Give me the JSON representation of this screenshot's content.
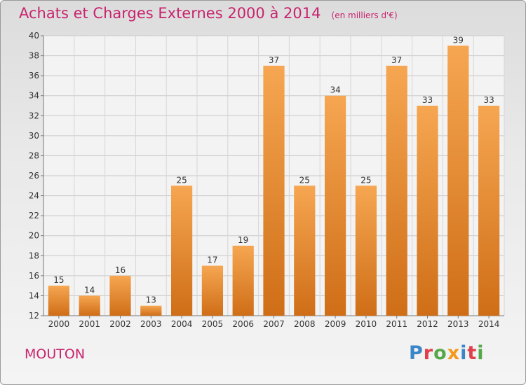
{
  "header": {
    "title": "Achats et Charges Externes 2000 à 2014",
    "unit": "(en milliers d'€)"
  },
  "footer": {
    "commune": "MOUTON",
    "logo_text": "Proxiti"
  },
  "colors": {
    "title": "#c8236e",
    "bar_light": "#f6a651",
    "bar_dark": "#cf6e17",
    "logo": [
      "#3a86c8",
      "#e0404a",
      "#55a84a",
      "#f39a1e",
      "#3a86c8",
      "#e0404a",
      "#55a84a"
    ]
  },
  "chart_data": {
    "type": "bar",
    "categories": [
      "2000",
      "2001",
      "2002",
      "2003",
      "2004",
      "2005",
      "2006",
      "2007",
      "2008",
      "2009",
      "2010",
      "2011",
      "2012",
      "2013",
      "2014"
    ],
    "values": [
      15,
      14,
      16,
      13,
      25,
      17,
      19,
      37,
      25,
      34,
      25,
      37,
      33,
      39,
      33
    ],
    "ylim": [
      12,
      40
    ],
    "yticks": [
      12,
      14,
      16,
      18,
      20,
      22,
      24,
      26,
      28,
      30,
      32,
      34,
      36,
      38,
      40
    ],
    "grid": true,
    "xlabel": "",
    "ylabel": ""
  }
}
